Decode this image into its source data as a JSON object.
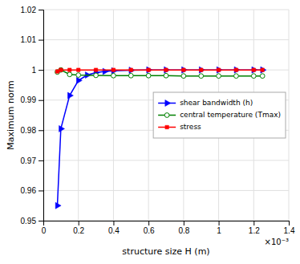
{
  "chart_data": {
    "type": "line",
    "xlabel": "structure size H (m)",
    "ylabel": "Maximum norm",
    "annotations": [
      "×10⁻³"
    ],
    "xlim": [
      0,
      0.0014
    ],
    "ylim": [
      0.95,
      1.02
    ],
    "xticks": [
      0,
      {
        "value": 0.0002,
        "label": "0.2"
      },
      {
        "value": 0.0004,
        "label": "0.4"
      },
      {
        "value": 0.0006,
        "label": "0.6"
      },
      {
        "value": 0.0008,
        "label": "0.8"
      },
      {
        "value": 0.001,
        "label": "1"
      },
      {
        "value": 0.0012,
        "label": "1.2"
      },
      {
        "value": 0.0014,
        "label": "1.4"
      }
    ],
    "yticks": [
      0.95,
      0.96,
      0.97,
      0.98,
      0.99,
      1,
      1.01,
      1.02
    ],
    "grid": true,
    "legend": "right",
    "series": [
      {
        "name": "shear bandwidth (h)",
        "color": "#0000ff",
        "marker": "triangle-right",
        "x": [
          8e-05,
          0.0001,
          0.00015,
          0.0002,
          0.00025,
          0.0003,
          0.00035,
          0.0004,
          0.0005,
          0.0006,
          0.0007,
          0.0008,
          0.0009,
          0.001,
          0.0011,
          0.0012,
          0.00125
        ],
        "values": [
          0.955,
          0.9805,
          0.9915,
          0.9965,
          0.9983,
          0.9991,
          0.9995,
          0.9997,
          0.9999,
          1.0,
          1.0,
          1.0,
          1.0,
          1.0,
          1.0,
          1.0,
          1.0
        ]
      },
      {
        "name": "central temperature (Tmax)",
        "color": "#008000",
        "marker": "open-circle",
        "x": [
          8e-05,
          0.0001,
          0.00015,
          0.0002,
          0.0003,
          0.0004,
          0.0005,
          0.0006,
          0.0007,
          0.0008,
          0.0009,
          0.001,
          0.0011,
          0.0012,
          0.00125
        ],
        "values": [
          0.9993,
          1.0,
          0.9985,
          0.9983,
          0.9982,
          0.9981,
          0.9981,
          0.9981,
          0.9981,
          0.998,
          0.998,
          0.998,
          0.998,
          0.998,
          0.998
        ]
      },
      {
        "name": "stress",
        "color": "#ff0000",
        "marker": "square",
        "x": [
          8e-05,
          0.0001,
          0.00015,
          0.0002,
          0.0003,
          0.0004,
          0.0005,
          0.0006,
          0.0007,
          0.0008,
          0.0009,
          0.001,
          0.0011,
          0.0012,
          0.00125
        ],
        "values": [
          0.9995,
          1.0,
          1.0,
          1.0,
          1.0,
          1.0,
          1.0,
          1.0,
          1.0,
          1.0,
          1.0,
          1.0,
          1.0,
          1.0,
          1.0
        ]
      }
    ]
  }
}
